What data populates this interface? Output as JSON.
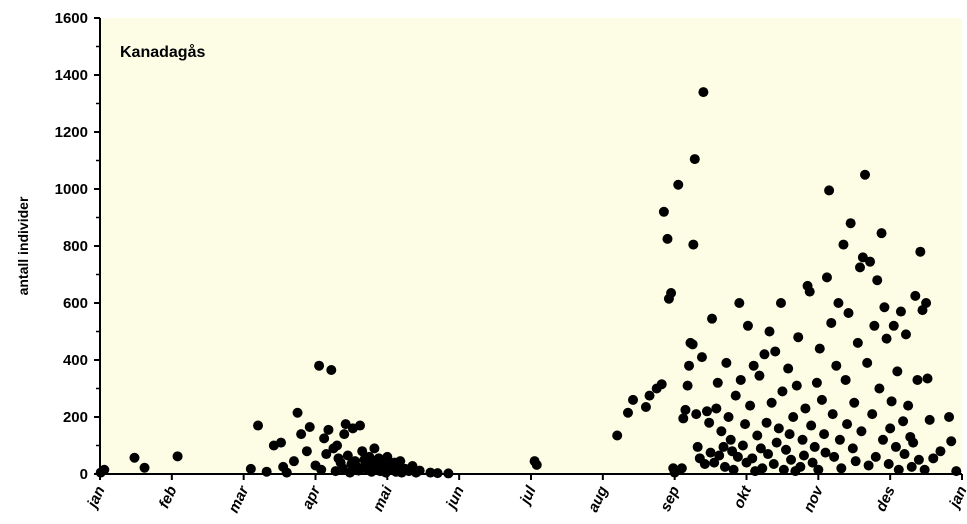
{
  "chart_data": {
    "type": "scatter",
    "title": "Kanadagås",
    "xlabel": "",
    "ylabel": "antall individer",
    "ylim": [
      0,
      1600
    ],
    "yticks": [
      0,
      200,
      400,
      600,
      800,
      1000,
      1200,
      1400,
      1600
    ],
    "xlim": [
      0,
      12
    ],
    "xticks": [
      "jan",
      "feb",
      "mar",
      "apr",
      "mai",
      "jun",
      "jul",
      "aug",
      "sep",
      "okt",
      "nov",
      "des",
      "jan"
    ],
    "x_unit": "months from 1 January",
    "grid": false,
    "colors": {
      "plot_background": "#fdfde6",
      "points": "#000000",
      "axes": "#000000"
    },
    "series": [
      {
        "values": [
          [
            0.01,
            5
          ],
          [
            0.06,
            15
          ],
          [
            0.48,
            57
          ],
          [
            0.62,
            22
          ],
          [
            1.08,
            62
          ],
          [
            2.1,
            18
          ],
          [
            2.2,
            170
          ],
          [
            2.32,
            8
          ],
          [
            2.42,
            100
          ],
          [
            2.52,
            110
          ],
          [
            2.55,
            25
          ],
          [
            2.6,
            5
          ],
          [
            2.7,
            45
          ],
          [
            2.75,
            215
          ],
          [
            2.8,
            140
          ],
          [
            2.88,
            80
          ],
          [
            2.92,
            165
          ],
          [
            3.0,
            30
          ],
          [
            3.05,
            380
          ],
          [
            3.08,
            15
          ],
          [
            3.12,
            125
          ],
          [
            3.15,
            70
          ],
          [
            3.18,
            155
          ],
          [
            3.22,
            365
          ],
          [
            3.25,
            90
          ],
          [
            3.28,
            10
          ],
          [
            3.3,
            100
          ],
          [
            3.32,
            55
          ],
          [
            3.35,
            40
          ],
          [
            3.38,
            20
          ],
          [
            3.4,
            140
          ],
          [
            3.42,
            175
          ],
          [
            3.45,
            65
          ],
          [
            3.48,
            5
          ],
          [
            3.5,
            35
          ],
          [
            3.52,
            160
          ],
          [
            3.55,
            45
          ],
          [
            3.58,
            25
          ],
          [
            3.6,
            12
          ],
          [
            3.62,
            170
          ],
          [
            3.65,
            80
          ],
          [
            3.68,
            50
          ],
          [
            3.7,
            30
          ],
          [
            3.72,
            15
          ],
          [
            3.75,
            60
          ],
          [
            3.78,
            8
          ],
          [
            3.8,
            40
          ],
          [
            3.82,
            90
          ],
          [
            3.85,
            20
          ],
          [
            3.88,
            55
          ],
          [
            3.9,
            10
          ],
          [
            3.92,
            35
          ],
          [
            3.95,
            25
          ],
          [
            3.98,
            5
          ],
          [
            4.0,
            60
          ],
          [
            4.03,
            30
          ],
          [
            4.06,
            15
          ],
          [
            4.1,
            40
          ],
          [
            4.12,
            8
          ],
          [
            4.15,
            20
          ],
          [
            4.18,
            45
          ],
          [
            4.2,
            5
          ],
          [
            4.25,
            18
          ],
          [
            4.3,
            10
          ],
          [
            4.35,
            28
          ],
          [
            4.4,
            5
          ],
          [
            4.45,
            12
          ],
          [
            4.6,
            5
          ],
          [
            4.7,
            3
          ],
          [
            4.85,
            2
          ],
          [
            6.05,
            45
          ],
          [
            6.08,
            32
          ],
          [
            7.2,
            135
          ],
          [
            7.35,
            215
          ],
          [
            7.42,
            260
          ],
          [
            7.6,
            235
          ],
          [
            7.65,
            275
          ],
          [
            7.75,
            300
          ],
          [
            7.82,
            315
          ],
          [
            7.85,
            920
          ],
          [
            7.9,
            825
          ],
          [
            7.92,
            615
          ],
          [
            7.95,
            635
          ],
          [
            7.98,
            20
          ],
          [
            8.0,
            5
          ],
          [
            8.05,
            1015
          ],
          [
            8.1,
            20
          ],
          [
            8.12,
            195
          ],
          [
            8.15,
            225
          ],
          [
            8.18,
            310
          ],
          [
            8.2,
            380
          ],
          [
            8.22,
            460
          ],
          [
            8.25,
            455
          ],
          [
            8.26,
            805
          ],
          [
            8.28,
            1105
          ],
          [
            8.3,
            210
          ],
          [
            8.32,
            95
          ],
          [
            8.35,
            55
          ],
          [
            8.38,
            410
          ],
          [
            8.4,
            1340
          ],
          [
            8.42,
            35
          ],
          [
            8.45,
            220
          ],
          [
            8.48,
            180
          ],
          [
            8.5,
            75
          ],
          [
            8.52,
            545
          ],
          [
            8.55,
            40
          ],
          [
            8.58,
            230
          ],
          [
            8.6,
            320
          ],
          [
            8.62,
            65
          ],
          [
            8.65,
            150
          ],
          [
            8.68,
            95
          ],
          [
            8.7,
            25
          ],
          [
            8.72,
            390
          ],
          [
            8.75,
            200
          ],
          [
            8.78,
            120
          ],
          [
            8.8,
            80
          ],
          [
            8.82,
            15
          ],
          [
            8.85,
            275
          ],
          [
            8.88,
            60
          ],
          [
            8.9,
            600
          ],
          [
            8.92,
            330
          ],
          [
            8.95,
            100
          ],
          [
            8.98,
            175
          ],
          [
            9.0,
            40
          ],
          [
            9.02,
            520
          ],
          [
            9.05,
            240
          ],
          [
            9.08,
            55
          ],
          [
            9.1,
            380
          ],
          [
            9.12,
            10
          ],
          [
            9.15,
            135
          ],
          [
            9.18,
            345
          ],
          [
            9.2,
            90
          ],
          [
            9.22,
            20
          ],
          [
            9.25,
            420
          ],
          [
            9.28,
            180
          ],
          [
            9.3,
            70
          ],
          [
            9.32,
            500
          ],
          [
            9.35,
            250
          ],
          [
            9.38,
            35
          ],
          [
            9.4,
            430
          ],
          [
            9.42,
            110
          ],
          [
            9.45,
            160
          ],
          [
            9.48,
            600
          ],
          [
            9.5,
            290
          ],
          [
            9.52,
            15
          ],
          [
            9.55,
            85
          ],
          [
            9.58,
            370
          ],
          [
            9.6,
            140
          ],
          [
            9.62,
            50
          ],
          [
            9.65,
            200
          ],
          [
            9.68,
            10
          ],
          [
            9.7,
            310
          ],
          [
            9.72,
            480
          ],
          [
            9.75,
            25
          ],
          [
            9.78,
            120
          ],
          [
            9.8,
            65
          ],
          [
            9.82,
            230
          ],
          [
            9.85,
            660
          ],
          [
            9.88,
            640
          ],
          [
            9.9,
            170
          ],
          [
            9.92,
            40
          ],
          [
            9.95,
            95
          ],
          [
            9.98,
            320
          ],
          [
            10.0,
            15
          ],
          [
            10.02,
            440
          ],
          [
            10.05,
            260
          ],
          [
            10.08,
            140
          ],
          [
            10.1,
            75
          ],
          [
            10.12,
            690
          ],
          [
            10.15,
            995
          ],
          [
            10.18,
            530
          ],
          [
            10.2,
            210
          ],
          [
            10.22,
            60
          ],
          [
            10.25,
            380
          ],
          [
            10.28,
            600
          ],
          [
            10.3,
            120
          ],
          [
            10.32,
            20
          ],
          [
            10.35,
            805
          ],
          [
            10.38,
            330
          ],
          [
            10.4,
            175
          ],
          [
            10.42,
            565
          ],
          [
            10.45,
            880
          ],
          [
            10.48,
            90
          ],
          [
            10.5,
            250
          ],
          [
            10.52,
            45
          ],
          [
            10.55,
            460
          ],
          [
            10.58,
            725
          ],
          [
            10.6,
            150
          ],
          [
            10.62,
            760
          ],
          [
            10.65,
            1050
          ],
          [
            10.68,
            390
          ],
          [
            10.7,
            30
          ],
          [
            10.72,
            745
          ],
          [
            10.75,
            210
          ],
          [
            10.78,
            520
          ],
          [
            10.8,
            60
          ],
          [
            10.82,
            680
          ],
          [
            10.85,
            300
          ],
          [
            10.88,
            845
          ],
          [
            10.9,
            120
          ],
          [
            10.92,
            585
          ],
          [
            10.95,
            475
          ],
          [
            10.98,
            35
          ],
          [
            11.0,
            160
          ],
          [
            11.02,
            255
          ],
          [
            11.05,
            520
          ],
          [
            11.08,
            95
          ],
          [
            11.1,
            360
          ],
          [
            11.12,
            15
          ],
          [
            11.15,
            570
          ],
          [
            11.18,
            185
          ],
          [
            11.2,
            70
          ],
          [
            11.22,
            490
          ],
          [
            11.25,
            240
          ],
          [
            11.28,
            130
          ],
          [
            11.3,
            25
          ],
          [
            11.32,
            110
          ],
          [
            11.35,
            625
          ],
          [
            11.38,
            330
          ],
          [
            11.4,
            50
          ],
          [
            11.42,
            780
          ],
          [
            11.45,
            575
          ],
          [
            11.48,
            15
          ],
          [
            11.5,
            600
          ],
          [
            11.52,
            335
          ],
          [
            11.55,
            190
          ],
          [
            11.6,
            55
          ],
          [
            11.7,
            80
          ],
          [
            11.82,
            200
          ],
          [
            11.85,
            115
          ],
          [
            11.92,
            10
          ]
        ]
      }
    ]
  }
}
